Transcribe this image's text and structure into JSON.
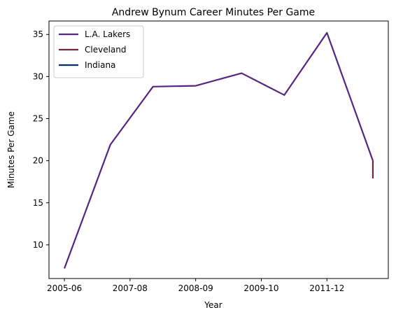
{
  "chart_data": {
    "type": "line",
    "title": "Andrew Bynum Career Minutes Per Game",
    "xlabel": "Year",
    "ylabel": "Minutes Per Game",
    "x_tick_labels": [
      "2005-06",
      "2007-08",
      "2008-09",
      "2009-10",
      "2011-12"
    ],
    "y_ticks": [
      10,
      15,
      20,
      25,
      30,
      35
    ],
    "ylim": [
      6,
      36.6
    ],
    "xlim": [
      -0.235,
      4.935
    ],
    "grid": false,
    "legend_position": "upper-left",
    "series": [
      {
        "name": "L.A. Lakers",
        "color": "#552583",
        "points": [
          {
            "x": 0,
            "y": 7.2
          },
          {
            "x": 0.7,
            "y": 21.9
          },
          {
            "x": 1.35,
            "y": 28.8
          },
          {
            "x": 2.0,
            "y": 28.9
          },
          {
            "x": 2.7,
            "y": 30.4
          },
          {
            "x": 3.35,
            "y": 27.8
          },
          {
            "x": 4.0,
            "y": 35.2
          },
          {
            "x": 4.7,
            "y": 20.0
          }
        ]
      },
      {
        "name": "Cleveland",
        "color": "#6F263D",
        "points": [
          {
            "x": 4.7,
            "y": 20.0
          },
          {
            "x": 4.7,
            "y": 17.9
          }
        ]
      },
      {
        "name": "Indiana",
        "color": "#002D62",
        "points": []
      }
    ]
  }
}
